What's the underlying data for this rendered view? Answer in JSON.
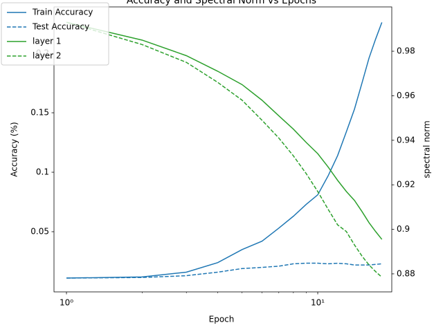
{
  "chart_data": {
    "type": "line",
    "title": "Accuracy and Spectral Norm vs Epochs",
    "x_label": "Epoch",
    "y_label": "Accuracy (%)",
    "y2_label": "spectral norm",
    "x": [
      1,
      2,
      3,
      4,
      5,
      6,
      7,
      8,
      9,
      10,
      11,
      12,
      13,
      14,
      15,
      16,
      17,
      18
    ],
    "xscale": "log",
    "xlim": [
      0.892,
      19.71
    ],
    "xticks": [
      {
        "value": 1,
        "label": "10⁰"
      },
      {
        "value": 10,
        "label": "10¹"
      }
    ],
    "xminorticks": [
      2,
      3,
      4,
      5,
      6,
      7,
      8,
      9
    ],
    "ylim": [
      -0.0006,
      0.239
    ],
    "yticks": [
      0.05,
      0.1,
      0.15,
      0.2
    ],
    "y2lim": [
      0.8719,
      0.9999
    ],
    "y2ticks": [
      0.88,
      0.9,
      0.92,
      0.94,
      0.96,
      0.98
    ],
    "y_color": "#1f77b4",
    "y2_color": "#2ca02c",
    "legend": "upper left",
    "series": [
      {
        "name": "Train Accuracy",
        "color": "#1f77b4",
        "linestyle": "solid",
        "values": [
          0.011,
          0.012,
          0.016,
          0.024,
          0.035,
          0.042,
          0.053,
          0.063,
          0.073,
          0.081,
          0.097,
          0.114,
          0.134,
          0.153,
          0.175,
          0.196,
          0.212,
          0.226
        ]
      },
      {
        "name": "Test Accuracy",
        "color": "#1f77b4",
        "linestyle": "dashed",
        "values": [
          0.011,
          0.0115,
          0.013,
          0.016,
          0.019,
          0.02,
          0.021,
          0.023,
          0.0235,
          0.0235,
          0.023,
          0.0235,
          0.023,
          0.022,
          0.022,
          0.022,
          0.0225,
          0.023
        ]
      },
      {
        "name": "layer 1",
        "color": "#2ca02c",
        "linestyle": "solid",
        "axis": "y2",
        "values": [
          0.993,
          0.985,
          0.978,
          0.971,
          0.965,
          0.958,
          0.951,
          0.945,
          0.939,
          0.934,
          0.928,
          0.922,
          0.917,
          0.913,
          0.908,
          0.903,
          0.899,
          0.8955
        ]
      },
      {
        "name": "layer 2",
        "color": "#2ca02c",
        "linestyle": "dashed",
        "axis": "y2",
        "values": [
          0.993,
          0.983,
          0.975,
          0.966,
          0.958,
          0.949,
          0.941,
          0.933,
          0.925,
          0.917,
          0.909,
          0.902,
          0.899,
          0.893,
          0.888,
          0.884,
          0.881,
          0.8785
        ]
      }
    ]
  }
}
